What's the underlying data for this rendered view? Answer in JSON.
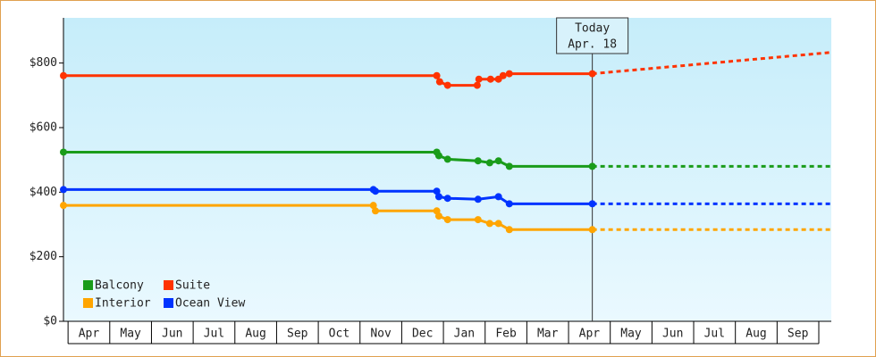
{
  "chart_data": {
    "type": "step-line",
    "ylim": [
      0,
      940
    ],
    "yticks": [
      {
        "value": 0,
        "label": "$0"
      },
      {
        "value": 200,
        "label": "$200"
      },
      {
        "value": 400,
        "label": "$400"
      },
      {
        "value": 600,
        "label": "$600"
      },
      {
        "value": 800,
        "label": "$800"
      }
    ],
    "xlim": [
      -0.11,
      18.3
    ],
    "categories": [
      "Apr",
      "May",
      "Jun",
      "Jul",
      "Aug",
      "Sep",
      "Oct",
      "Nov",
      "Dec",
      "Jan",
      "Feb",
      "Mar",
      "Apr",
      "May",
      "Jun",
      "Jul",
      "Aug",
      "Sep"
    ],
    "today_label": "Today",
    "today_date": "Apr. 18",
    "today_x": 12.57,
    "series": [
      {
        "name": "Balcony",
        "color": "#1a9c1a",
        "x": [
          -0.11,
          8.84,
          8.89,
          9.1,
          9.83,
          10.11,
          10.32,
          10.58,
          12.57
        ],
        "values": [
          524,
          524,
          513,
          502,
          497,
          491,
          497,
          480,
          480
        ],
        "forecast": {
          "x": [
            12.57,
            18.3
          ],
          "values": [
            480,
            480
          ]
        }
      },
      {
        "name": "Suite",
        "color": "#ff3300",
        "x": [
          -0.11,
          8.84,
          8.91,
          9.1,
          9.81,
          9.85,
          10.13,
          10.32,
          10.43,
          10.58,
          12.57
        ],
        "values": [
          761,
          761,
          742,
          731,
          731,
          750,
          750,
          750,
          761,
          767,
          767
        ],
        "forecast": {
          "x": [
            12.57,
            18.3
          ],
          "values": [
            767,
            833
          ]
        }
      },
      {
        "name": "Interior",
        "color": "#ffa500",
        "x": [
          -0.11,
          7.32,
          7.37,
          8.84,
          8.89,
          9.1,
          9.83,
          10.11,
          10.32,
          10.58,
          12.57
        ],
        "values": [
          359,
          359,
          342,
          342,
          326,
          315,
          315,
          303,
          303,
          284,
          284
        ],
        "forecast": {
          "x": [
            12.57,
            18.3
          ],
          "values": [
            284,
            284
          ]
        }
      },
      {
        "name": "Ocean View",
        "color": "#0033ff",
        "x": [
          -0.11,
          7.32,
          7.37,
          8.84,
          8.89,
          9.1,
          9.83,
          10.32,
          10.58,
          12.57
        ],
        "values": [
          408,
          408,
          403,
          403,
          386,
          381,
          378,
          386,
          364,
          364
        ],
        "forecast": {
          "x": [
            12.57,
            18.3
          ],
          "values": [
            364,
            364
          ]
        }
      }
    ]
  }
}
